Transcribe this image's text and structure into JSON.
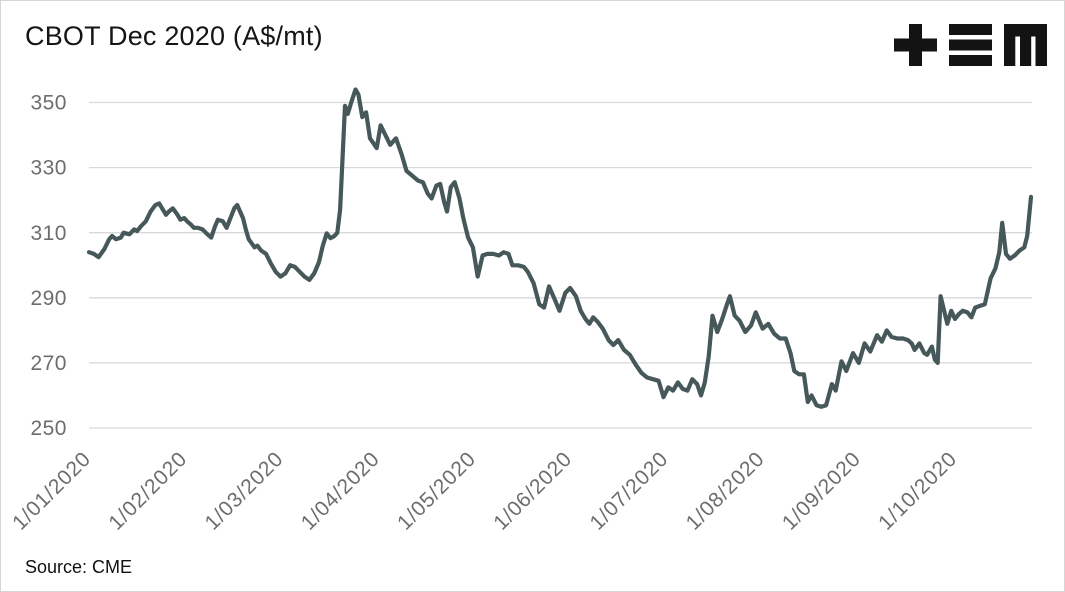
{
  "title": "CBOT Dec 2020 (A$/mt)",
  "source": "Source: CME",
  "logo": {
    "name": "TEM logo",
    "glyphs": [
      "plus",
      "triple-bar",
      "m"
    ],
    "color": "#131313"
  },
  "colors": {
    "line": "#46585a",
    "grid": "#d9d9d9",
    "tick_label": "#6d6d6d",
    "title": "#151515",
    "background": "#ffffff",
    "border": "#d6d6d6"
  },
  "chart_data": {
    "type": "line",
    "title": "CBOT Dec 2020 (A$/mt)",
    "xlabel": "",
    "ylabel": "",
    "legend": "none",
    "grid": "horizontal",
    "y_ticks": [
      250,
      270,
      290,
      310,
      330,
      350
    ],
    "ylim_gridlines": [
      250,
      350
    ],
    "x_tick_labels": [
      "1/01/2020",
      "1/02/2020",
      "1/03/2020",
      "1/04/2020",
      "1/05/2020",
      "1/06/2020",
      "1/07/2020",
      "1/08/2020",
      "1/09/2020",
      "1/10/2020"
    ],
    "x_tick_rotation_deg": 45,
    "x_domain_months": [
      0,
      9.8
    ],
    "series": [
      {
        "name": "CBOT Dec 2020 (A$/mt)",
        "points": [
          [
            0.0,
            304
          ],
          [
            0.05,
            303.5
          ],
          [
            0.1,
            302.5
          ],
          [
            0.16,
            305
          ],
          [
            0.21,
            308
          ],
          [
            0.24,
            309
          ],
          [
            0.28,
            308
          ],
          [
            0.33,
            308.5
          ],
          [
            0.36,
            310
          ],
          [
            0.42,
            309.5
          ],
          [
            0.47,
            311
          ],
          [
            0.5,
            310.5
          ],
          [
            0.54,
            312
          ],
          [
            0.59,
            313.5
          ],
          [
            0.64,
            316.5
          ],
          [
            0.69,
            318.5
          ],
          [
            0.73,
            319
          ],
          [
            0.76,
            317.5
          ],
          [
            0.8,
            315.5
          ],
          [
            0.83,
            316.5
          ],
          [
            0.87,
            317.5
          ],
          [
            0.92,
            315.5
          ],
          [
            0.95,
            314
          ],
          [
            0.99,
            314.5
          ],
          [
            1.02,
            313.5
          ],
          [
            1.06,
            312.5
          ],
          [
            1.09,
            311.5
          ],
          [
            1.13,
            311.5
          ],
          [
            1.18,
            311
          ],
          [
            1.23,
            309.5
          ],
          [
            1.27,
            308.5
          ],
          [
            1.31,
            312
          ],
          [
            1.34,
            314
          ],
          [
            1.39,
            313.5
          ],
          [
            1.43,
            311.5
          ],
          [
            1.47,
            314.5
          ],
          [
            1.51,
            317.5
          ],
          [
            1.54,
            318.5
          ],
          [
            1.6,
            314.5
          ],
          [
            1.63,
            311
          ],
          [
            1.66,
            308
          ],
          [
            1.72,
            305.5
          ],
          [
            1.75,
            306
          ],
          [
            1.79,
            304.5
          ],
          [
            1.84,
            303.5
          ],
          [
            1.89,
            300.5
          ],
          [
            1.94,
            298
          ],
          [
            1.99,
            296.5
          ],
          [
            2.04,
            297.5
          ],
          [
            2.09,
            300
          ],
          [
            2.14,
            299.5
          ],
          [
            2.19,
            298
          ],
          [
            2.24,
            296.5
          ],
          [
            2.29,
            295.5
          ],
          [
            2.34,
            297.5
          ],
          [
            2.39,
            301
          ],
          [
            2.43,
            306
          ],
          [
            2.47,
            309.8
          ],
          [
            2.51,
            308.3
          ],
          [
            2.55,
            309
          ],
          [
            2.58,
            310
          ],
          [
            2.61,
            317
          ],
          [
            2.63,
            330
          ],
          [
            2.66,
            349
          ],
          [
            2.69,
            346.5
          ],
          [
            2.73,
            350.5
          ],
          [
            2.77,
            354
          ],
          [
            2.8,
            352.5
          ],
          [
            2.84,
            345.5
          ],
          [
            2.88,
            347
          ],
          [
            2.92,
            339
          ],
          [
            2.96,
            337.3
          ],
          [
            2.99,
            336
          ],
          [
            3.03,
            343
          ],
          [
            3.08,
            340
          ],
          [
            3.13,
            337
          ],
          [
            3.19,
            339
          ],
          [
            3.25,
            334
          ],
          [
            3.3,
            329
          ],
          [
            3.36,
            327.5
          ],
          [
            3.42,
            326
          ],
          [
            3.47,
            325.5
          ],
          [
            3.52,
            322
          ],
          [
            3.56,
            320.5
          ],
          [
            3.61,
            324.5
          ],
          [
            3.65,
            325
          ],
          [
            3.69,
            319.5
          ],
          [
            3.72,
            316.5
          ],
          [
            3.76,
            324
          ],
          [
            3.8,
            325.5
          ],
          [
            3.85,
            320.5
          ],
          [
            3.89,
            314.5
          ],
          [
            3.94,
            308.5
          ],
          [
            3.99,
            305.5
          ],
          [
            4.04,
            296.5
          ],
          [
            4.09,
            303
          ],
          [
            4.14,
            303.5
          ],
          [
            4.2,
            303.5
          ],
          [
            4.26,
            303
          ],
          [
            4.31,
            304
          ],
          [
            4.36,
            303.5
          ],
          [
            4.4,
            300
          ],
          [
            4.46,
            300
          ],
          [
            4.52,
            299.5
          ],
          [
            4.56,
            298
          ],
          [
            4.62,
            294.5
          ],
          [
            4.68,
            288
          ],
          [
            4.73,
            287
          ],
          [
            4.78,
            293.5
          ],
          [
            4.84,
            289.5
          ],
          [
            4.89,
            286
          ],
          [
            4.95,
            291.5
          ],
          [
            5.0,
            293
          ],
          [
            5.06,
            290.5
          ],
          [
            5.11,
            286
          ],
          [
            5.16,
            283.5
          ],
          [
            5.2,
            282
          ],
          [
            5.24,
            284
          ],
          [
            5.29,
            282.5
          ],
          [
            5.34,
            280.5
          ],
          [
            5.4,
            277
          ],
          [
            5.45,
            275.5
          ],
          [
            5.5,
            277
          ],
          [
            5.56,
            274
          ],
          [
            5.62,
            272.5
          ],
          [
            5.68,
            269.5
          ],
          [
            5.74,
            267
          ],
          [
            5.8,
            265.5
          ],
          [
            5.86,
            265
          ],
          [
            5.92,
            264.5
          ],
          [
            5.97,
            259.5
          ],
          [
            6.02,
            262.5
          ],
          [
            6.07,
            261.5
          ],
          [
            6.12,
            264
          ],
          [
            6.17,
            262
          ],
          [
            6.22,
            261.5
          ],
          [
            6.27,
            265
          ],
          [
            6.32,
            263.5
          ],
          [
            6.36,
            260
          ],
          [
            6.4,
            264
          ],
          [
            6.44,
            272
          ],
          [
            6.48,
            284.5
          ],
          [
            6.53,
            279.5
          ],
          [
            6.58,
            283.5
          ],
          [
            6.63,
            288
          ],
          [
            6.66,
            290.5
          ],
          [
            6.71,
            284.5
          ],
          [
            6.76,
            283
          ],
          [
            6.82,
            279.5
          ],
          [
            6.88,
            281.5
          ],
          [
            6.93,
            285.5
          ],
          [
            7.0,
            280.5
          ],
          [
            7.06,
            282
          ],
          [
            7.12,
            279
          ],
          [
            7.18,
            277.5
          ],
          [
            7.24,
            277.5
          ],
          [
            7.29,
            273
          ],
          [
            7.33,
            267.5
          ],
          [
            7.38,
            266.5
          ],
          [
            7.43,
            266.5
          ],
          [
            7.47,
            258
          ],
          [
            7.51,
            260
          ],
          [
            7.56,
            257
          ],
          [
            7.61,
            256.5
          ],
          [
            7.66,
            257
          ],
          [
            7.72,
            263.5
          ],
          [
            7.76,
            261.5
          ],
          [
            7.82,
            270.5
          ],
          [
            7.87,
            267.5
          ],
          [
            7.94,
            273
          ],
          [
            8.0,
            270
          ],
          [
            8.06,
            276
          ],
          [
            8.12,
            273.5
          ],
          [
            8.19,
            278.5
          ],
          [
            8.24,
            276.5
          ],
          [
            8.29,
            280
          ],
          [
            8.34,
            278
          ],
          [
            8.4,
            277.5
          ],
          [
            8.46,
            277.5
          ],
          [
            8.51,
            277
          ],
          [
            8.55,
            276
          ],
          [
            8.58,
            274
          ],
          [
            8.63,
            276
          ],
          [
            8.68,
            273
          ],
          [
            8.71,
            272.5
          ],
          [
            8.76,
            275
          ],
          [
            8.79,
            271
          ],
          [
            8.82,
            270
          ],
          [
            8.85,
            290.5
          ],
          [
            8.92,
            282
          ],
          [
            8.96,
            286
          ],
          [
            9.0,
            283.5
          ],
          [
            9.04,
            285
          ],
          [
            9.08,
            286
          ],
          [
            9.13,
            285.5
          ],
          [
            9.17,
            284
          ],
          [
            9.21,
            287
          ],
          [
            9.26,
            287.5
          ],
          [
            9.31,
            288
          ],
          [
            9.37,
            296
          ],
          [
            9.42,
            299
          ],
          [
            9.46,
            304
          ],
          [
            9.49,
            313
          ],
          [
            9.53,
            303.5
          ],
          [
            9.57,
            302
          ],
          [
            9.62,
            303
          ],
          [
            9.67,
            304.5
          ],
          [
            9.72,
            305.5
          ],
          [
            9.75,
            309
          ],
          [
            9.79,
            321
          ]
        ]
      }
    ]
  }
}
